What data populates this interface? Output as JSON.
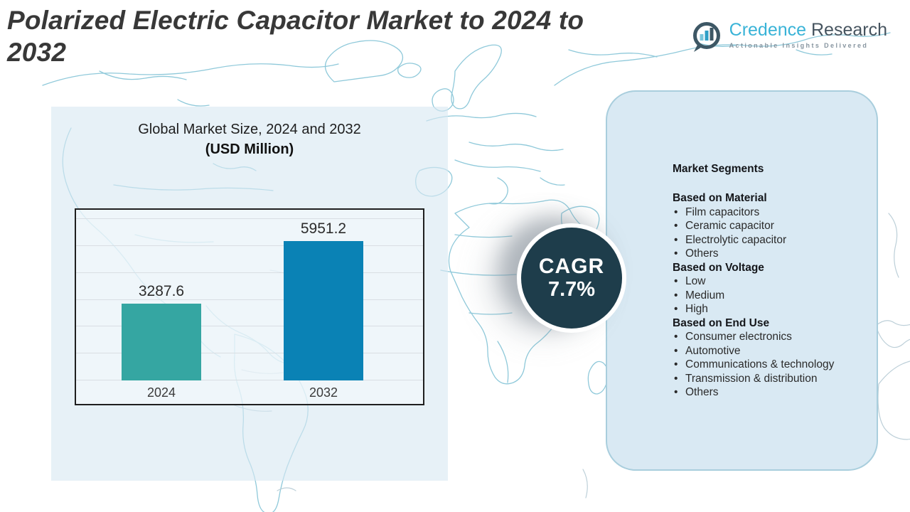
{
  "header": {
    "title": "Polarized Electric Capacitor Market to 2024 to 2032"
  },
  "logo": {
    "brand_primary": "Credence",
    "brand_secondary": "Research",
    "tagline": "Actionable Insights Delivered"
  },
  "chart_data": {
    "type": "bar",
    "title": "Global Market Size, 2024 and 2032",
    "subtitle": "(USD Million)",
    "categories": [
      "2024",
      "2032"
    ],
    "values": [
      3287.6,
      5951.2
    ],
    "colors": [
      "#35a6a2",
      "#0a82b5"
    ],
    "xlabel": "",
    "ylabel": "",
    "ylim": [
      0,
      7400
    ],
    "grid": true,
    "legend": "none"
  },
  "cagr": {
    "label": "CAGR",
    "value": "7.7%"
  },
  "segments": {
    "heading": "Market Segments",
    "bullet": "•",
    "sections": [
      {
        "title": "Based on Material",
        "items": [
          "Film capacitors",
          "Ceramic capacitor",
          "Electrolytic capacitor",
          "Others"
        ]
      },
      {
        "title": "Based on Voltage",
        "items": [
          "Low",
          "Medium",
          "High"
        ]
      },
      {
        "title": "Based on End Use",
        "items": [
          "Consumer electronics",
          "Automotive",
          "Communications & technology",
          "Transmission & distribution",
          "Others"
        ]
      }
    ]
  },
  "colors": {
    "bar_2024": "#35a6a2",
    "bar_2032": "#0a82b5",
    "cagr_circle": "#1e3d4b",
    "panel_fill": "#d9e9f3",
    "panel_border": "#a9cedd",
    "map_line": "#8fc9da",
    "brand_cyan": "#39b3d7",
    "brand_slate": "#46545f"
  }
}
